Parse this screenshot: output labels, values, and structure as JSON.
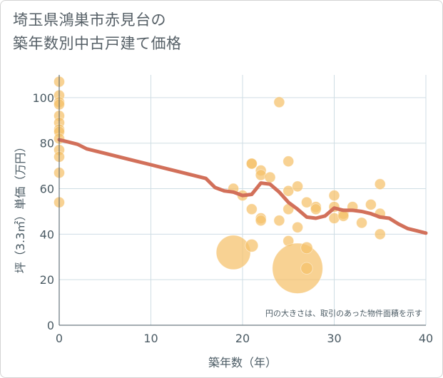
{
  "chart_data": {
    "type": "scatter",
    "title": "埼玉県鴻巣市赤見台の築年数別中古戸建て価格",
    "title_lines": [
      "埼玉県鴻巣市赤見台の",
      "築年数別中古戸建て価格"
    ],
    "xlabel": "築年数（年）",
    "ylabel": "坪（3.3㎡）単価（万円）",
    "xlim": [
      0,
      40
    ],
    "ylim": [
      0,
      110
    ],
    "x_ticks": [
      0,
      10,
      20,
      30,
      40
    ],
    "y_ticks": [
      0,
      20,
      40,
      60,
      80,
      100
    ],
    "grid": true,
    "annotation": "円の大きさは、取引のあった物件面積を示す",
    "colors": {
      "bubble": "#f5c06a",
      "trend": "#d2705a",
      "grid": "#cfdde4",
      "axis": "#4a5a63"
    },
    "series": [
      {
        "type": "bubble",
        "points": [
          {
            "x": 0,
            "y": 107,
            "s": 1
          },
          {
            "x": 0,
            "y": 101,
            "s": 1
          },
          {
            "x": 0,
            "y": 98,
            "s": 1
          },
          {
            "x": 0,
            "y": 97,
            "s": 1
          },
          {
            "x": 0,
            "y": 92,
            "s": 1
          },
          {
            "x": 0,
            "y": 89,
            "s": 1
          },
          {
            "x": 0,
            "y": 86,
            "s": 1
          },
          {
            "x": 0,
            "y": 85,
            "s": 1
          },
          {
            "x": 0,
            "y": 82,
            "s": 1
          },
          {
            "x": 0,
            "y": 77,
            "s": 1
          },
          {
            "x": 0,
            "y": 74,
            "s": 1
          },
          {
            "x": 0,
            "y": 67,
            "s": 1
          },
          {
            "x": 0,
            "y": 54,
            "s": 1
          },
          {
            "x": 19,
            "y": 60,
            "s": 1
          },
          {
            "x": 19,
            "y": 32,
            "s": 3.2
          },
          {
            "x": 20,
            "y": 57,
            "s": 1
          },
          {
            "x": 21,
            "y": 71,
            "s": 1
          },
          {
            "x": 21,
            "y": 71,
            "s": 1
          },
          {
            "x": 21,
            "y": 51,
            "s": 1
          },
          {
            "x": 21,
            "y": 35,
            "s": 1.2
          },
          {
            "x": 22,
            "y": 68,
            "s": 1
          },
          {
            "x": 22,
            "y": 66,
            "s": 1
          },
          {
            "x": 22,
            "y": 47,
            "s": 1
          },
          {
            "x": 22,
            "y": 46,
            "s": 1
          },
          {
            "x": 23,
            "y": 65,
            "s": 1
          },
          {
            "x": 24,
            "y": 98,
            "s": 1
          },
          {
            "x": 24,
            "y": 46,
            "s": 1
          },
          {
            "x": 25,
            "y": 72,
            "s": 1
          },
          {
            "x": 25,
            "y": 59,
            "s": 1
          },
          {
            "x": 25,
            "y": 51,
            "s": 1
          },
          {
            "x": 25,
            "y": 37,
            "s": 1
          },
          {
            "x": 26,
            "y": 61,
            "s": 1
          },
          {
            "x": 26,
            "y": 43,
            "s": 1
          },
          {
            "x": 26,
            "y": 25,
            "s": 4.7
          },
          {
            "x": 27,
            "y": 54,
            "s": 1
          },
          {
            "x": 27,
            "y": 34,
            "s": 1.1
          },
          {
            "x": 27,
            "y": 25,
            "s": 1.1
          },
          {
            "x": 28,
            "y": 52,
            "s": 1
          },
          {
            "x": 28,
            "y": 51,
            "s": 1
          },
          {
            "x": 30,
            "y": 57,
            "s": 1
          },
          {
            "x": 30,
            "y": 52,
            "s": 1
          },
          {
            "x": 30,
            "y": 47,
            "s": 1
          },
          {
            "x": 31,
            "y": 49,
            "s": 1
          },
          {
            "x": 31,
            "y": 48,
            "s": 1
          },
          {
            "x": 32,
            "y": 52,
            "s": 1
          },
          {
            "x": 33,
            "y": 45,
            "s": 1
          },
          {
            "x": 34,
            "y": 53,
            "s": 1
          },
          {
            "x": 35,
            "y": 62,
            "s": 1
          },
          {
            "x": 35,
            "y": 49,
            "s": 1
          },
          {
            "x": 35,
            "y": 40,
            "s": 1
          }
        ]
      },
      {
        "type": "line",
        "x": [
          0,
          1,
          2,
          3,
          5,
          8,
          10,
          12,
          14,
          16,
          17,
          18,
          19,
          20,
          21,
          22,
          23,
          24,
          25,
          26,
          27,
          28,
          29,
          30,
          31,
          32,
          33,
          34,
          35,
          36,
          37,
          38,
          39,
          40
        ],
        "y": [
          81.5,
          80.5,
          79.5,
          77.5,
          75.5,
          72.5,
          70.5,
          68.5,
          66.5,
          64.5,
          60.5,
          59,
          58.5,
          57,
          57.5,
          62.5,
          62,
          58.5,
          54,
          51,
          47.5,
          47,
          48,
          51.5,
          50.5,
          50.5,
          50,
          49,
          47.5,
          47,
          44.5,
          42.5,
          41.5,
          40.5
        ]
      }
    ]
  }
}
